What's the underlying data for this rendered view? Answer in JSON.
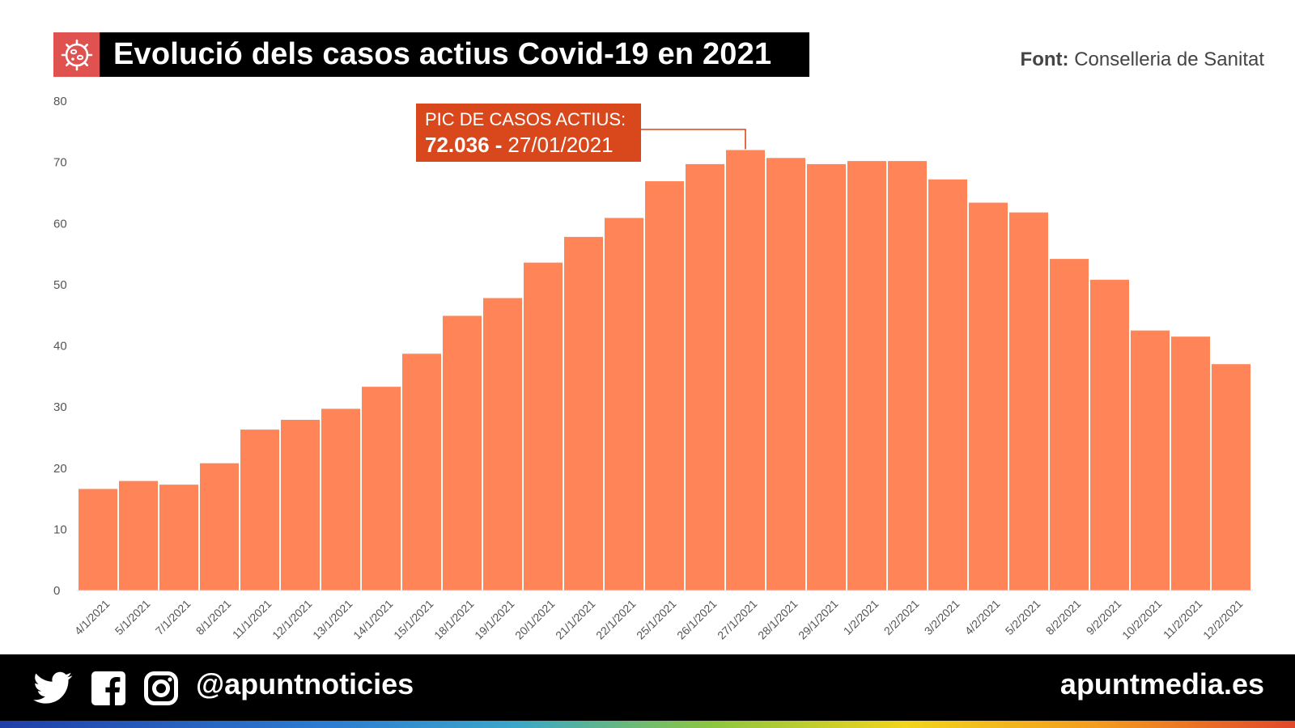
{
  "header": {
    "title": "Evolució dels casos actius Covid-19 en 2021",
    "icon": "virus-icon",
    "icon_bg": "#e0524f"
  },
  "source": {
    "label": "Font:",
    "text": "Conselleria de Sanitat"
  },
  "chart_data": {
    "type": "bar",
    "title": "Evolució dels casos actius Covid-19 en 2021",
    "xlabel": "",
    "ylabel": "",
    "ylim": [
      0,
      80
    ],
    "yticks": [
      "0",
      "10",
      "20",
      "30",
      "40",
      "50",
      "60",
      "70",
      "80"
    ],
    "grid": false,
    "bar_color": "#ff8457",
    "categories": [
      "4/1/2021",
      "5/1/2021",
      "7/1/2021",
      "8/1/2021",
      "11/1/2021",
      "12/1/2021",
      "13/1/2021",
      "14/1/2021",
      "15/1/2021",
      "18/1/2021",
      "19/1/2021",
      "20/1/2021",
      "21/1/2021",
      "22/1/2021",
      "25/1/2021",
      "26/1/2021",
      "27/1/2021",
      "28/1/2021",
      "29/1/2021",
      "1/2/2021",
      "2/2/2021",
      "3/2/2021",
      "4/2/2021",
      "5/2/2021",
      "8/2/2021",
      "9/2/2021",
      "10/2/2021",
      "11/2/2021",
      "12/2/2021"
    ],
    "values": [
      16.6,
      17.9,
      17.3,
      20.8,
      26.3,
      27.9,
      29.7,
      33.3,
      38.7,
      44.9,
      47.8,
      53.6,
      57.8,
      60.9,
      66.9,
      69.7,
      72.0,
      70.7,
      69.7,
      70.2,
      70.2,
      67.2,
      63.4,
      61.8,
      54.2,
      50.8,
      42.5,
      41.5,
      37.0
    ],
    "annotation": {
      "line1": "PIC DE CASOS ACTIUS:",
      "value": "72.036 -",
      "date": "27/01/2021",
      "target_category": "27/1/2021",
      "color": "#d9481c"
    }
  },
  "footer": {
    "icons": [
      "twitter-icon",
      "facebook-icon",
      "instagram-icon"
    ],
    "handle": "@apuntnoticies",
    "site": "apuntmedia.es"
  }
}
